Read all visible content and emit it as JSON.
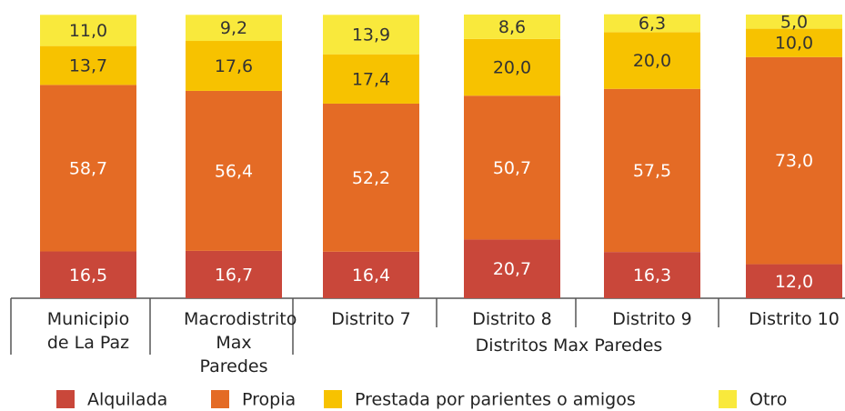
{
  "chart_data": {
    "type": "stacked-bar",
    "categories": [
      "Municipio de La Paz",
      "Macrodistrito Max Paredes",
      "Distrito 7",
      "Distrito 8",
      "Distrito 9",
      "Distrito 10"
    ],
    "group_label": "Distritos Max Paredes",
    "series": [
      {
        "name": "Alquilada",
        "color": "#c9473a",
        "values": [
          16.5,
          16.7,
          16.4,
          20.7,
          16.3,
          12.0
        ],
        "value_labels": [
          "16,5",
          "16,7",
          "16,4",
          "20,7",
          "16,3",
          "12,0"
        ]
      },
      {
        "name": "Propia",
        "color": "#e46b25",
        "values": [
          58.7,
          56.4,
          52.2,
          50.7,
          57.5,
          73.0
        ],
        "value_labels": [
          "58,7",
          "56,4",
          "52,2",
          "50,7",
          "57,5",
          "73,0"
        ]
      },
      {
        "name": "Prestada por parientes o amigos",
        "color": "#f7c200",
        "values": [
          13.7,
          17.6,
          17.4,
          20.0,
          20.0,
          10.0
        ],
        "value_labels": [
          "13,7",
          "17,6",
          "17,4",
          "20,0",
          "20,0",
          "10,0"
        ]
      },
      {
        "name": "Otro",
        "color": "#f9e93c",
        "values": [
          11.0,
          9.2,
          13.9,
          8.6,
          6.3,
          5.0
        ],
        "value_labels": [
          "11,0",
          "9,2",
          "13,9",
          "8,6",
          "6,3",
          "5,0"
        ]
      }
    ]
  }
}
